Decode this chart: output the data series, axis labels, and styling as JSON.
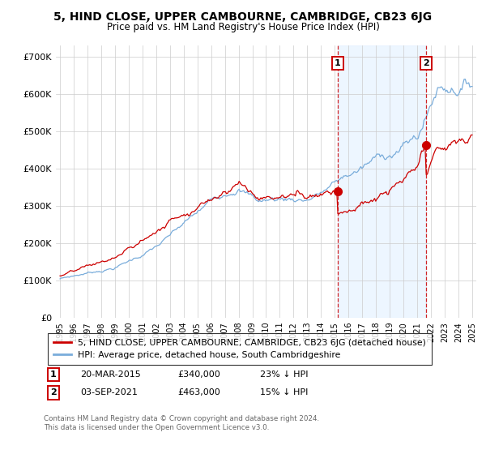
{
  "title": "5, HIND CLOSE, UPPER CAMBOURNE, CAMBRIDGE, CB23 6JG",
  "subtitle": "Price paid vs. HM Land Registry's House Price Index (HPI)",
  "legend_line1": "5, HIND CLOSE, UPPER CAMBOURNE, CAMBRIDGE, CB23 6JG (detached house)",
  "legend_line2": "HPI: Average price, detached house, South Cambridgeshire",
  "point1_date": "20-MAR-2015",
  "point1_price": "£340,000",
  "point1_label": "23% ↓ HPI",
  "point1_year": 2015.21,
  "point1_value": 340000,
  "point2_date": "03-SEP-2021",
  "point2_price": "£463,000",
  "point2_label": "15% ↓ HPI",
  "point2_year": 2021.67,
  "point2_value": 463000,
  "footnote": "Contains HM Land Registry data © Crown copyright and database right 2024.\nThis data is licensed under the Open Government Licence v3.0.",
  "red_color": "#cc0000",
  "blue_color": "#7aaddb",
  "shade_color": "#ddeeff",
  "background_color": "#ffffff",
  "grid_color": "#cccccc",
  "ylim": [
    0,
    730000
  ],
  "xlim_left": 1994.7,
  "xlim_right": 2025.3,
  "yticks": [
    0,
    100000,
    200000,
    300000,
    400000,
    500000,
    600000,
    700000
  ],
  "ytick_labels": [
    "£0",
    "£100K",
    "£200K",
    "£300K",
    "£400K",
    "£500K",
    "£600K",
    "£700K"
  ]
}
